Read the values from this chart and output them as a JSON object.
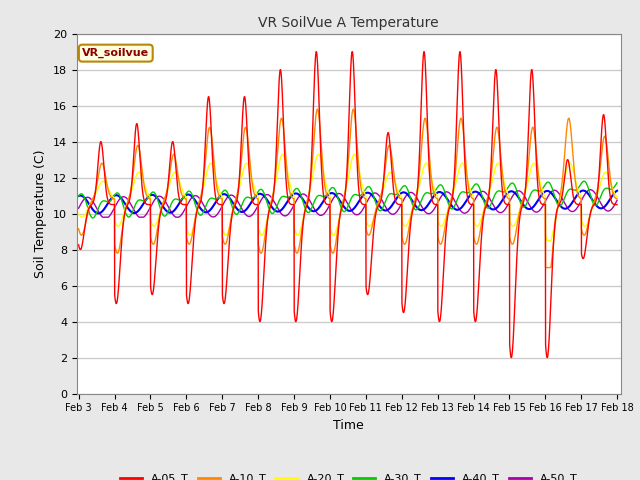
{
  "title": "VR SoilVue A Temperature",
  "xlabel": "Time",
  "ylabel": "Soil Temperature (C)",
  "ylim": [
    0,
    20
  ],
  "xlim_days": [
    3,
    18
  ],
  "fig_bg_color": "#e8e8e8",
  "plot_bg_color": "#ffffff",
  "grid_color": "#cccccc",
  "series_colors": {
    "A-05_T": "#ff0000",
    "A-10_T": "#ff8800",
    "A-20_T": "#ffff00",
    "A-30_T": "#00cc00",
    "A-40_T": "#0000ff",
    "A-50_T": "#aa00aa"
  },
  "legend_label": "VR_soilvue",
  "xtick_labels": [
    "Feb 3",
    "Feb 4",
    "Feb 5",
    "Feb 6",
    "Feb 7",
    "Feb 8",
    "Feb 9",
    "Feb 10",
    "Feb 11",
    "Feb 12",
    "Feb 13",
    "Feb 14",
    "Feb 15",
    "Feb 16",
    "Feb 17",
    "Feb 18"
  ],
  "xtick_positions": [
    3,
    4,
    5,
    6,
    7,
    8,
    9,
    10,
    11,
    12,
    13,
    14,
    15,
    16,
    17,
    18
  ]
}
